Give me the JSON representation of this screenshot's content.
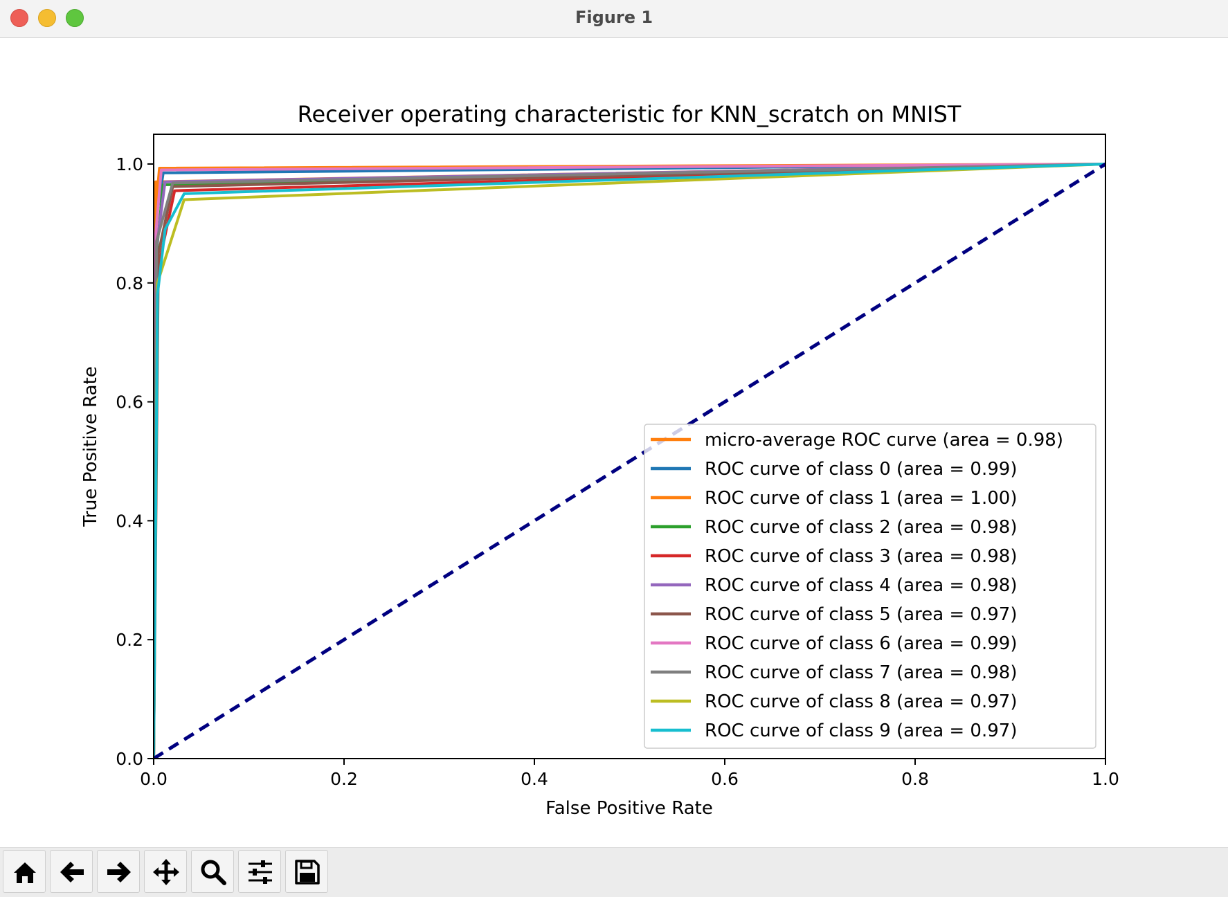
{
  "window": {
    "title": "Figure 1"
  },
  "toolbar": {
    "buttons": [
      {
        "name": "home-button",
        "icon": "home-icon"
      },
      {
        "name": "back-button",
        "icon": "arrow-left-icon"
      },
      {
        "name": "forward-button",
        "icon": "arrow-right-icon"
      },
      {
        "name": "pan-button",
        "icon": "move-icon"
      },
      {
        "name": "zoom-button",
        "icon": "search-icon"
      },
      {
        "name": "configure-subplots-button",
        "icon": "sliders-icon"
      },
      {
        "name": "save-button",
        "icon": "save-icon"
      }
    ]
  },
  "chart_data": {
    "type": "line",
    "title": "Receiver operating characteristic for KNN_scratch on MNIST",
    "xlabel": "False Positive Rate",
    "ylabel": "True Positive Rate",
    "xlim": [
      0.0,
      1.0
    ],
    "ylim": [
      0.0,
      1.05
    ],
    "xticks": [
      "0.0",
      "0.2",
      "0.4",
      "0.6",
      "0.8",
      "1.0"
    ],
    "yticks": [
      "0.0",
      "0.2",
      "0.4",
      "0.6",
      "0.8",
      "1.0"
    ],
    "grid": false,
    "legend_position": "lower right",
    "series": [
      {
        "name": "micro-average ROC curve (area = 0.98)",
        "color": "#ff7f0e",
        "x": [
          0.0,
          0.002,
          1.0
        ],
        "y": [
          0.0,
          0.97,
          1.0
        ]
      },
      {
        "name": "ROC curve of class 0 (area = 0.99)",
        "color": "#1f77b4",
        "x": [
          0.0,
          0.002,
          0.01,
          1.0
        ],
        "y": [
          0.0,
          0.9,
          0.985,
          1.0
        ]
      },
      {
        "name": "ROC curve of class 1 (area = 1.00)",
        "color": "#ff7f0e",
        "x": [
          0.0,
          0.001,
          0.006,
          1.0
        ],
        "y": [
          0.0,
          0.9,
          0.993,
          1.0
        ]
      },
      {
        "name": "ROC curve of class 2 (area = 0.98)",
        "color": "#2ca02c",
        "x": [
          0.0,
          0.003,
          0.01,
          1.0
        ],
        "y": [
          0.0,
          0.85,
          0.965,
          1.0
        ]
      },
      {
        "name": "ROC curve of class 3 (area = 0.98)",
        "color": "#d62728",
        "x": [
          0.0,
          0.004,
          0.022,
          1.0
        ],
        "y": [
          0.0,
          0.82,
          0.955,
          1.0
        ]
      },
      {
        "name": "ROC curve of class 4 (area = 0.98)",
        "color": "#9467bd",
        "x": [
          0.0,
          0.003,
          0.012,
          1.0
        ],
        "y": [
          0.0,
          0.86,
          0.97,
          1.0
        ]
      },
      {
        "name": "ROC curve of class 5 (area = 0.97)",
        "color": "#8c564b",
        "x": [
          0.0,
          0.005,
          0.02,
          1.0
        ],
        "y": [
          0.0,
          0.85,
          0.962,
          1.0
        ]
      },
      {
        "name": "ROC curve of class 6 (area = 0.99)",
        "color": "#e377c2",
        "x": [
          0.0,
          0.002,
          0.008,
          1.0
        ],
        "y": [
          0.0,
          0.88,
          0.99,
          1.0
        ]
      },
      {
        "name": "ROC curve of class 7 (area = 0.98)",
        "color": "#7f7f7f",
        "x": [
          0.0,
          0.003,
          0.02,
          1.0
        ],
        "y": [
          0.0,
          0.87,
          0.968,
          1.0
        ]
      },
      {
        "name": "ROC curve of class 8 (area = 0.97)",
        "color": "#bcbd22",
        "x": [
          0.0,
          0.004,
          0.032,
          1.0
        ],
        "y": [
          0.0,
          0.8,
          0.94,
          1.0
        ]
      },
      {
        "name": "ROC curve of class 9 (area = 0.97)",
        "color": "#17becf",
        "x": [
          0.0,
          0.004,
          0.012,
          0.032,
          1.0
        ],
        "y": [
          0.0,
          0.78,
          0.89,
          0.95,
          1.0
        ]
      },
      {
        "name": "",
        "color": "#000080",
        "dashed": true,
        "x": [
          0.0,
          1.0
        ],
        "y": [
          0.0,
          1.0
        ]
      }
    ]
  }
}
